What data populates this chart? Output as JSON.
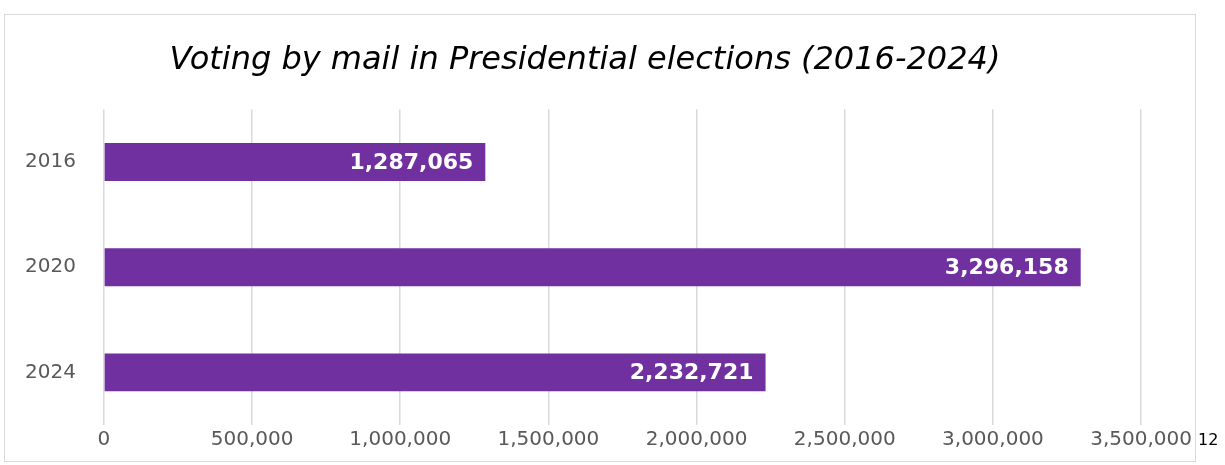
{
  "chart_data": {
    "type": "bar",
    "orientation": "horizontal",
    "title": "Voting by mail in Presidential elections (2016-2024)",
    "categories": [
      "2016",
      "2020",
      "2024"
    ],
    "values": [
      1287065,
      3296158,
      2232721
    ],
    "color": "#7030a0",
    "value_labels": [
      "1,287,065",
      "3,296,158",
      "2,232,721"
    ],
    "xlim": [
      0,
      3500000
    ],
    "xticks": [
      {
        "value": 0,
        "label": "0"
      },
      {
        "value": 500000,
        "label": "500,000"
      },
      {
        "value": 1000000,
        "label": "1,000,000"
      },
      {
        "value": 1500000,
        "label": "1,500,000"
      },
      {
        "value": 2000000,
        "label": "2,000,000"
      },
      {
        "value": 2500000,
        "label": "2,500,000"
      },
      {
        "value": 3000000,
        "label": "3,000,000"
      },
      {
        "value": 3500000,
        "label": "3,500,000"
      }
    ],
    "grid": "x",
    "annotations": [
      "12"
    ]
  }
}
